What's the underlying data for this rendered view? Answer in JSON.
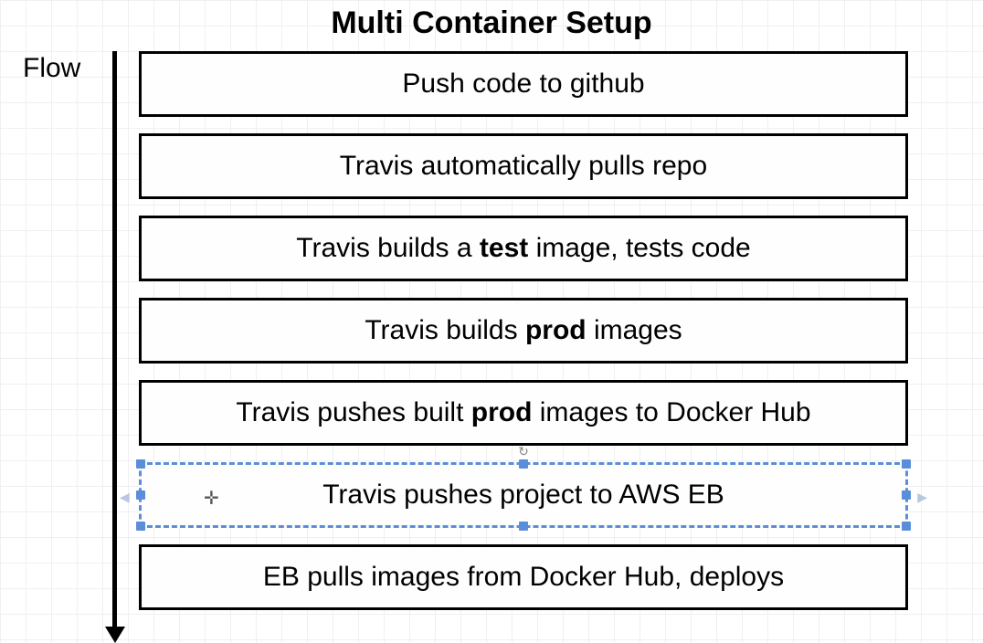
{
  "diagram": {
    "type": "flowchart",
    "title": "Multi Container Setup",
    "flow_label": "Flow",
    "background_color": "#ffffff",
    "grid_color": "#f0f0f2",
    "grid_size": 28,
    "title_fontsize": 34,
    "title_fontweight": "bold",
    "label_fontsize": 30,
    "step_fontsize": 30,
    "box_border_color": "#000000",
    "box_border_width": 3,
    "box_bg_color": "#fefefe",
    "box_spacing": 18,
    "selection_color": "#5a8ed8",
    "arrow": {
      "color": "#000000",
      "width": 5,
      "length": 636,
      "head_width": 22,
      "head_height": 18
    },
    "steps": [
      {
        "segments": [
          {
            "text": "Push code to github",
            "bold": false
          }
        ],
        "selected": false
      },
      {
        "segments": [
          {
            "text": "Travis automatically pulls repo",
            "bold": false
          }
        ],
        "selected": false
      },
      {
        "segments": [
          {
            "text": "Travis builds a ",
            "bold": false
          },
          {
            "text": "test",
            "bold": true
          },
          {
            "text": " image, tests code",
            "bold": false
          }
        ],
        "selected": false
      },
      {
        "segments": [
          {
            "text": "Travis builds ",
            "bold": false
          },
          {
            "text": "prod",
            "bold": true
          },
          {
            "text": " images",
            "bold": false
          }
        ],
        "selected": false
      },
      {
        "segments": [
          {
            "text": "Travis pushes built ",
            "bold": false
          },
          {
            "text": "prod",
            "bold": true
          },
          {
            "text": " images to Docker Hub",
            "bold": false
          }
        ],
        "selected": false
      },
      {
        "segments": [
          {
            "text": "Travis pushes project to AWS EB",
            "bold": false
          }
        ],
        "selected": true
      },
      {
        "segments": [
          {
            "text": "EB pulls images from Docker Hub, deploys",
            "bold": false
          }
        ],
        "selected": false
      }
    ]
  }
}
